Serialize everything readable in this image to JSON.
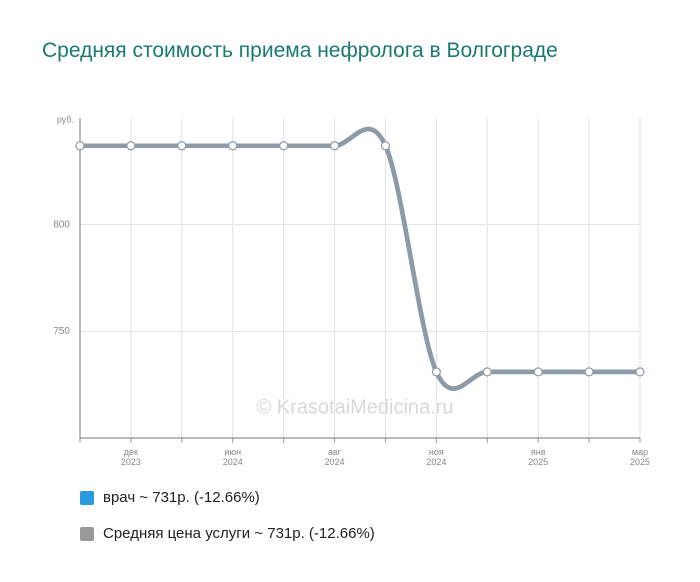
{
  "chart_data": {
    "type": "line",
    "title": "Средняя стоимость приема нефролога в Волгограде",
    "ylabel": "руб.",
    "watermark": "© KrasotaiMedicina.ru",
    "categories": [
      null,
      "дек 2023",
      null,
      "июн 2024",
      null,
      "авг 2024",
      null,
      "ноя 2024",
      null,
      "янв 2025",
      null,
      "мар 2025"
    ],
    "series": [
      {
        "name": "врач ~ 731р. (-12.66%)",
        "color": "#2b9be0",
        "values": [
          837,
          837,
          837,
          837,
          837,
          837,
          837,
          731,
          731,
          731,
          731,
          731
        ]
      },
      {
        "name": "Средняя цена услуги ~ 731р. (-12.66%)",
        "color": "#8e9aa6",
        "values": [
          837,
          837,
          837,
          837,
          837,
          837,
          837,
          731,
          731,
          731,
          731,
          731
        ]
      }
    ],
    "ylim": [
      700,
      850
    ],
    "yticks": [
      750,
      800
    ],
    "grid": true
  }
}
